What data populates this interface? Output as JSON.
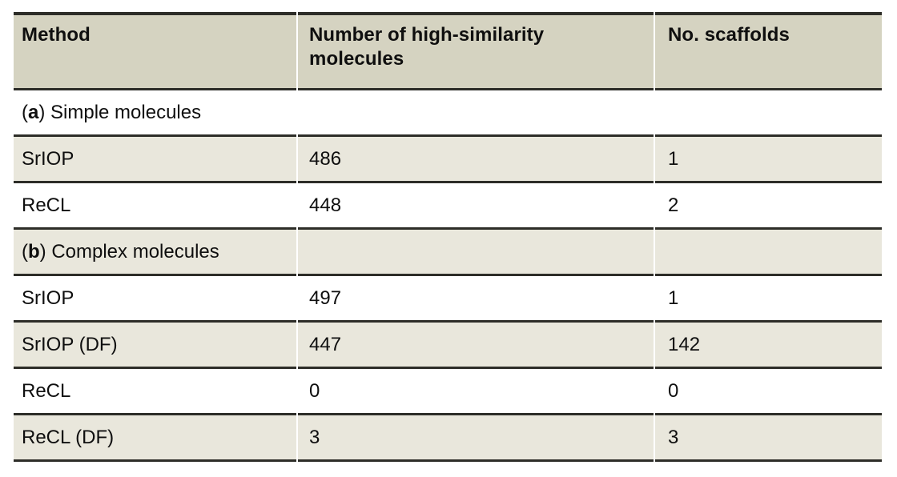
{
  "colors": {
    "header_bg": "#d5d3c1",
    "stripe_bg": "#e9e7dc",
    "rule": "#2d2d28",
    "text": "#0f0f0f",
    "page_bg": "#ffffff"
  },
  "header": {
    "method": "Method",
    "molecules": "Number of high-similarity molecules",
    "scaffolds": "No. scaffolds"
  },
  "sections": {
    "a": {
      "open": "(",
      "letter": "a",
      "rest": ") Simple molecules"
    },
    "b": {
      "open": "(",
      "letter": "b",
      "rest": ") Complex molecules"
    }
  },
  "rows": [
    {
      "method": "SrIOP",
      "molecules": "486",
      "scaffolds": "1"
    },
    {
      "method": "ReCL",
      "molecules": "448",
      "scaffolds": "2"
    },
    {
      "method": "SrIOP",
      "molecules": "497",
      "scaffolds": "1"
    },
    {
      "method": "SrIOP (DF)",
      "molecules": "447",
      "scaffolds": "142"
    },
    {
      "method": "ReCL",
      "molecules": "0",
      "scaffolds": "0"
    },
    {
      "method": "ReCL (DF)",
      "molecules": "3",
      "scaffolds": "3"
    }
  ]
}
